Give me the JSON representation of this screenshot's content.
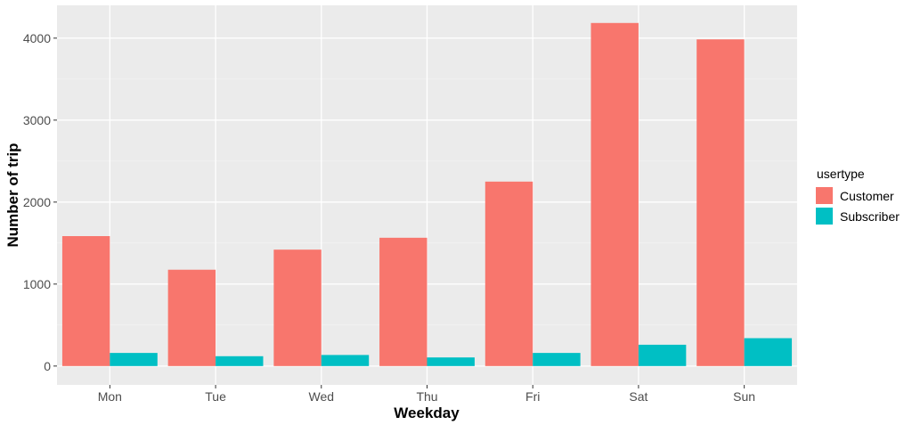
{
  "chart_data": {
    "type": "bar",
    "categories": [
      "Mon",
      "Tue",
      "Wed",
      "Thu",
      "Fri",
      "Sat",
      "Sun"
    ],
    "series": [
      {
        "name": "Customer",
        "color": "#F8766D",
        "values": [
          1585,
          1175,
          1420,
          1565,
          2250,
          4185,
          3985
        ]
      },
      {
        "name": "Subscriber",
        "color": "#00BFC4",
        "values": [
          160,
          120,
          135,
          105,
          160,
          260,
          340
        ]
      }
    ],
    "xlabel": "Weekday",
    "ylabel": "Number of trip",
    "ylim": [
      -230,
      4400
    ],
    "yticks": [
      0,
      1000,
      2000,
      3000,
      4000
    ],
    "ytick_labels": [
      "0",
      "1000",
      "2000",
      "3000",
      "4000"
    ],
    "legend": {
      "title": "usertype",
      "position": "right"
    },
    "grid": true
  }
}
